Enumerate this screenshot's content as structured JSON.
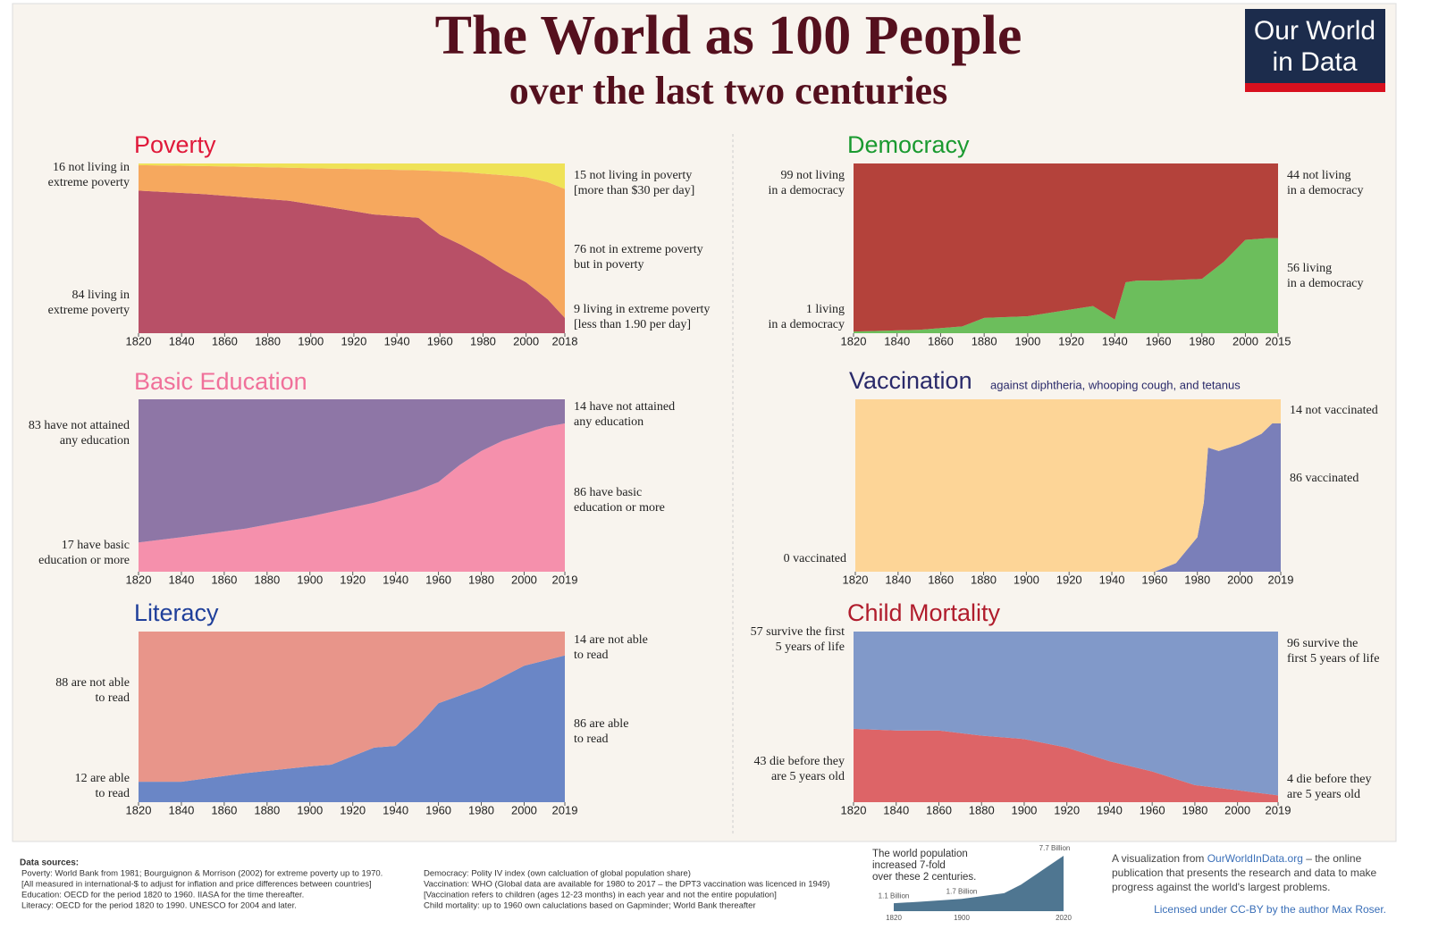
{
  "header": {
    "title": "The World as 100 People",
    "subtitle": "over the last two centuries"
  },
  "logo": {
    "lines": [
      "Our World",
      "in Data"
    ]
  },
  "chart_data": [
    {
      "type": "stacked_area",
      "title": "Poverty",
      "xlim": [
        1820,
        2018
      ],
      "ylim": [
        0,
        100
      ],
      "xticks": [
        1820,
        1840,
        1860,
        1880,
        1900,
        1920,
        1940,
        1960,
        1980,
        2000,
        2018
      ],
      "x": [
        1820,
        1850,
        1870,
        1890,
        1910,
        1929,
        1950,
        1960,
        1970,
        1980,
        1990,
        2000,
        2010,
        2018
      ],
      "series": [
        {
          "name": "living in extreme poverty",
          "color": "#b85067",
          "values": [
            84,
            82,
            80,
            78,
            74,
            70,
            68,
            58,
            52,
            45,
            37,
            30,
            20,
            9
          ]
        },
        {
          "name": "not in extreme poverty but in poverty",
          "color": "#f6a85e",
          "values": [
            15,
            16.5,
            18,
            19.5,
            23,
            26.5,
            28,
            37.5,
            43,
            49,
            56,
            62,
            69,
            76
          ]
        },
        {
          "name": "not living in poverty",
          "color": "#efe257",
          "values": [
            1,
            1.5,
            2,
            2.5,
            3,
            3.5,
            4,
            4.5,
            5,
            6,
            7,
            8,
            11,
            15
          ]
        }
      ],
      "annotations": [
        {
          "side": "left",
          "lines": [
            "16 not living in",
            "extreme poverty"
          ]
        },
        {
          "side": "left",
          "lines": [
            "84 living in",
            "extreme poverty"
          ]
        },
        {
          "side": "right",
          "lines": [
            "15 not living in poverty",
            "[more than $30 per day]"
          ]
        },
        {
          "side": "right",
          "lines": [
            "76 not in extreme poverty",
            "but in poverty"
          ]
        },
        {
          "side": "right",
          "lines": [
            "9 living in extreme poverty",
            "[less than 1.90 per day]"
          ]
        }
      ]
    },
    {
      "type": "stacked_area",
      "title": "Basic Education",
      "xlim": [
        1820,
        2019
      ],
      "ylim": [
        0,
        100
      ],
      "xticks": [
        1820,
        1840,
        1860,
        1880,
        1900,
        1920,
        1940,
        1960,
        1980,
        2000,
        2019
      ],
      "x": [
        1820,
        1840,
        1870,
        1900,
        1930,
        1950,
        1960,
        1970,
        1980,
        1990,
        2000,
        2010,
        2019
      ],
      "series": [
        {
          "name": "have basic education or more",
          "color": "#f590ac",
          "values": [
            17,
            20,
            25,
            32,
            40,
            47,
            52,
            62,
            70,
            76,
            80,
            84,
            86
          ]
        },
        {
          "name": "have not attained any education",
          "color": "#8e76a6",
          "values": [
            83,
            80,
            75,
            68,
            60,
            53,
            48,
            38,
            30,
            24,
            20,
            16,
            14
          ]
        }
      ],
      "annotations": [
        {
          "side": "left",
          "lines": [
            "83 have not attained",
            "any education"
          ]
        },
        {
          "side": "left",
          "lines": [
            "17 have basic",
            "education or more"
          ]
        },
        {
          "side": "right",
          "lines": [
            "14 have not attained",
            "any education"
          ]
        },
        {
          "side": "right",
          "lines": [
            "86 have basic",
            "education or more"
          ]
        }
      ]
    },
    {
      "type": "stacked_area",
      "title": "Literacy",
      "xlim": [
        1820,
        2019
      ],
      "ylim": [
        0,
        100
      ],
      "xticks": [
        1820,
        1840,
        1860,
        1880,
        1900,
        1920,
        1940,
        1960,
        1980,
        2000,
        2019
      ],
      "x": [
        1820,
        1840,
        1870,
        1900,
        1910,
        1930,
        1940,
        1950,
        1960,
        1980,
        2000,
        2019
      ],
      "series": [
        {
          "name": "are able to read",
          "color": "#6a86c6",
          "values": [
            12,
            12,
            17,
            21,
            22,
            32,
            33,
            44,
            58,
            67,
            80,
            86
          ]
        },
        {
          "name": "are not able to read",
          "color": "#e8958a",
          "values": [
            88,
            88,
            83,
            79,
            78,
            68,
            67,
            56,
            42,
            33,
            20,
            14
          ]
        }
      ],
      "annotations": [
        {
          "side": "left",
          "lines": [
            "88 are not able",
            "to read"
          ]
        },
        {
          "side": "left",
          "lines": [
            "12 are able",
            "to read"
          ]
        },
        {
          "side": "right",
          "lines": [
            "14 are not able",
            "to read"
          ]
        },
        {
          "side": "right",
          "lines": [
            "86 are able",
            "to read"
          ]
        }
      ]
    },
    {
      "type": "stacked_area",
      "title": "Democracy",
      "xlim": [
        1820,
        2015
      ],
      "ylim": [
        0,
        100
      ],
      "xticks": [
        1820,
        1840,
        1860,
        1880,
        1900,
        1920,
        1940,
        1960,
        1980,
        2000,
        2015
      ],
      "x": [
        1820,
        1850,
        1870,
        1880,
        1900,
        1920,
        1930,
        1940,
        1945,
        1950,
        1960,
        1980,
        1990,
        2000,
        2010,
        2015
      ],
      "series": [
        {
          "name": "living in a democracy",
          "color": "#6cbe5c",
          "values": [
            1,
            2,
            4,
            9,
            10,
            14,
            16,
            8,
            30,
            31,
            31,
            32,
            42,
            55,
            56,
            56
          ]
        },
        {
          "name": "not living in a democracy",
          "color": "#b4423b",
          "values": [
            99,
            98,
            96,
            91,
            90,
            86,
            84,
            92,
            70,
            69,
            69,
            68,
            58,
            45,
            44,
            44
          ]
        }
      ],
      "annotations": [
        {
          "side": "left",
          "lines": [
            "99 not living",
            "in a democracy"
          ]
        },
        {
          "side": "left",
          "lines": [
            "1 living",
            "in a democracy"
          ]
        },
        {
          "side": "right",
          "lines": [
            "44 not living",
            "in a democracy"
          ]
        },
        {
          "side": "right",
          "lines": [
            "56 living",
            "in a democracy"
          ]
        }
      ]
    },
    {
      "type": "stacked_area",
      "title": "Vaccination",
      "subtitle": "against diphtheria, whooping cough, and tetanus",
      "xlim": [
        1820,
        2019
      ],
      "ylim": [
        0,
        100
      ],
      "xticks": [
        1820,
        1840,
        1860,
        1880,
        1900,
        1920,
        1940,
        1960,
        1980,
        2000,
        2019
      ],
      "x": [
        1820,
        1960,
        1970,
        1980,
        1983,
        1985,
        1990,
        1995,
        2000,
        2010,
        2015,
        2019
      ],
      "series": [
        {
          "name": "vaccinated",
          "color": "#7a7fb9",
          "values": [
            0,
            0,
            5,
            20,
            40,
            72,
            70,
            72,
            74,
            80,
            86,
            86
          ]
        },
        {
          "name": "not vaccinated",
          "color": "#fdd597",
          "values": [
            100,
            100,
            95,
            80,
            60,
            28,
            30,
            28,
            26,
            20,
            14,
            14
          ]
        }
      ],
      "annotations": [
        {
          "side": "left",
          "lines": [
            "0 vaccinated"
          ]
        },
        {
          "side": "right",
          "lines": [
            "14 not vaccinated"
          ]
        },
        {
          "side": "right",
          "lines": [
            "86 vaccinated"
          ]
        }
      ]
    },
    {
      "type": "stacked_area",
      "title": "Child Mortality",
      "xlim": [
        1820,
        2019
      ],
      "ylim": [
        0,
        100
      ],
      "xticks": [
        1820,
        1840,
        1860,
        1880,
        1900,
        1920,
        1940,
        1960,
        1980,
        2000,
        2019
      ],
      "x": [
        1820,
        1840,
        1860,
        1880,
        1900,
        1920,
        1940,
        1960,
        1980,
        2000,
        2019
      ],
      "series": [
        {
          "name": "die before they are 5 years old",
          "color": "#dd6467",
          "values": [
            43,
            42,
            42,
            39,
            37,
            32,
            24,
            18,
            10,
            7,
            4
          ]
        },
        {
          "name": "survive the first 5 years of life",
          "color": "#8199c9",
          "values": [
            57,
            58,
            58,
            61,
            63,
            68,
            76,
            82,
            90,
            93,
            96
          ]
        }
      ],
      "annotations": [
        {
          "side": "left",
          "lines": [
            "57 survive the first",
            "5 years of life"
          ]
        },
        {
          "side": "left",
          "lines": [
            "43 die before they",
            "are 5 years old"
          ]
        },
        {
          "side": "right",
          "lines": [
            "96 survive the",
            "first 5 years of life"
          ]
        },
        {
          "side": "right",
          "lines": [
            "4 die before they",
            "are 5 years old"
          ]
        }
      ]
    },
    {
      "type": "area",
      "color": "#4f7691",
      "xlim": [
        1820,
        2020
      ],
      "xticks": [
        1820,
        1900,
        2020
      ],
      "x": [
        1820,
        1850,
        1900,
        1950,
        1970,
        1990,
        2000,
        2020
      ],
      "values": [
        1.1,
        1.3,
        1.7,
        2.5,
        3.7,
        5.3,
        6.1,
        7.7
      ],
      "value_labels": [
        "1.1 Billion",
        null,
        "1.7 Billion",
        null,
        null,
        null,
        null,
        "7.7 Billion"
      ],
      "annotations": [
        {
          "side": "left",
          "lines": [
            "The world population",
            "increased 7-fold",
            "over these 2 centuries."
          ]
        }
      ]
    }
  ],
  "sources": {
    "heading": "Data sources:",
    "left": [
      "Poverty: World Bank from 1981; Bourguignon & Morrison (2002) for extreme poverty up to 1970.",
      " [All measured in international-$ to adjust for inflation and price differences between countries]",
      "Education: OECD for the period 1820 to 1960. IIASA for the time thereafter.",
      "Literacy: OECD for the period 1820 to 1990. UNESCO for 2004 and later."
    ],
    "right": [
      "Democracy: Polity IV index (own calcluation of global population share)",
      "Vaccination: WHO (Global data are available for 1980 to 2017 – the DPT3 vaccination was licenced in 1949)",
      " [Vaccination refers to children (ages 12-23 months) in each year and not the entire population]",
      "Child mortality: up to 1960 own caluclations based on Gapminder; World Bank thereafter"
    ]
  },
  "credits": {
    "intro": "A visualization from ",
    "link": "OurWorldInData.org",
    "rest": " – the online",
    "lines": [
      "publication that presents the research and data to make",
      "progress against the world's largest problems."
    ],
    "license": "Licensed under CC-BY by the author Max Roser."
  }
}
